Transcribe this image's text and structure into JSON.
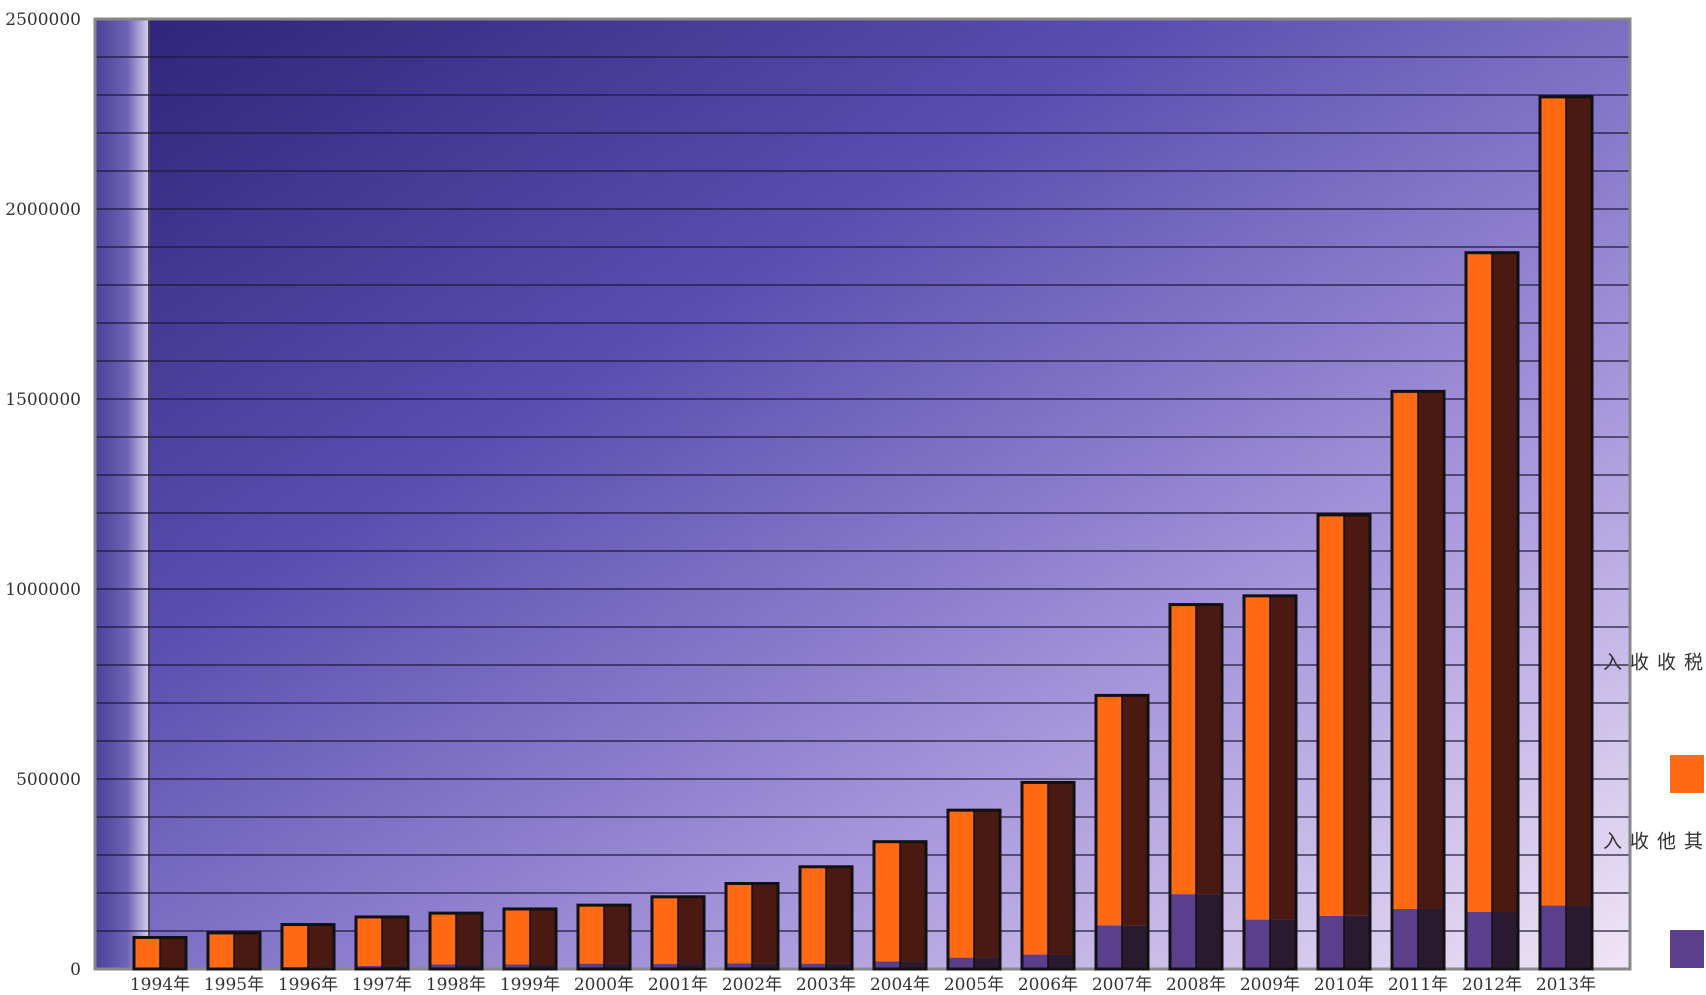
{
  "chart_data": {
    "type": "bar",
    "stacked": true,
    "categories": [
      "1994年",
      "1995年",
      "1996年",
      "1997年",
      "1998年",
      "1999年",
      "2000年",
      "2001年",
      "2002年",
      "2003年",
      "2004年",
      "2005年",
      "2006年",
      "2007年",
      "2008年",
      "2009年",
      "2010年",
      "2011年",
      "2012年",
      "2013年"
    ],
    "series": [
      {
        "name": "其他收入",
        "color": "#5b3f8c",
        "values": [
          3000,
          4000,
          5000,
          8000,
          12000,
          12000,
          14000,
          13000,
          15000,
          14000,
          20000,
          30000,
          38000,
          115000,
          197000,
          130000,
          140000,
          158000,
          150000,
          167000
        ]
      },
      {
        "name": "税收收入",
        "color": "#ff6a13",
        "values": [
          80000,
          91000,
          112000,
          129000,
          135000,
          146000,
          154000,
          177000,
          210000,
          255000,
          315000,
          388000,
          453000,
          605000,
          762000,
          852000,
          1055000,
          1362000,
          1735000,
          2128000
        ]
      }
    ],
    "totals": [
      83000,
      95000,
      117000,
      137000,
      147000,
      158000,
      168000,
      190000,
      225000,
      269000,
      335000,
      418000,
      491000,
      720000,
      959000,
      982000,
      1195000,
      1520000,
      1885000,
      2295000
    ],
    "y_ticks": [
      "0",
      "500000",
      "1000000",
      "1500000",
      "2000000",
      "2500000"
    ],
    "ylim": [
      0,
      2500000
    ],
    "grid": true,
    "legend": "right"
  }
}
